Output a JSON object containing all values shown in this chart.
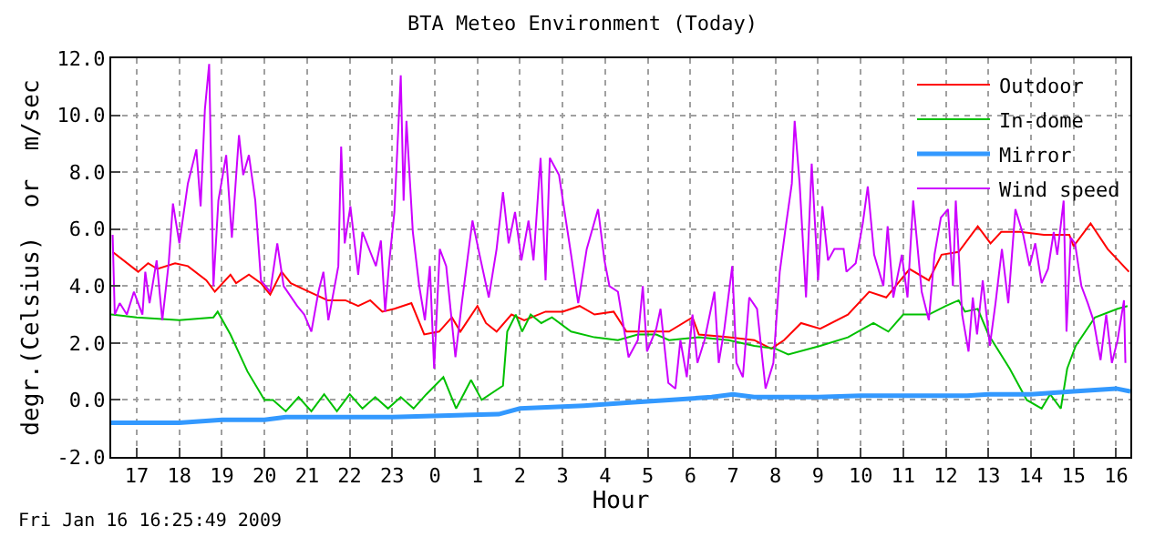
{
  "chart_data": {
    "type": "line",
    "title": "BTA Meteo Environment (Today)",
    "xlabel": "Hour",
    "ylabel": "degr.(Celsius)  or  m/sec",
    "annotations": [
      "Fri Jan 16 16:25:49 2009"
    ],
    "xlim": [
      "2009-01-15T16:24",
      "2009-01-16T16:20"
    ],
    "xticks": [
      {
        "value": "2009-01-15T17:00",
        "label": "17"
      },
      {
        "value": "2009-01-15T18:00",
        "label": "18"
      },
      {
        "value": "2009-01-15T19:00",
        "label": "19"
      },
      {
        "value": "2009-01-15T20:00",
        "label": "20"
      },
      {
        "value": "2009-01-15T21:00",
        "label": "21"
      },
      {
        "value": "2009-01-15T22:00",
        "label": "22"
      },
      {
        "value": "2009-01-15T23:00",
        "label": "23"
      },
      {
        "value": "2009-01-16T00:00",
        "label": "0"
      },
      {
        "value": "2009-01-16T01:00",
        "label": "1"
      },
      {
        "value": "2009-01-16T02:00",
        "label": "2"
      },
      {
        "value": "2009-01-16T03:00",
        "label": "3"
      },
      {
        "value": "2009-01-16T04:00",
        "label": "4"
      },
      {
        "value": "2009-01-16T05:00",
        "label": "5"
      },
      {
        "value": "2009-01-16T06:00",
        "label": "6"
      },
      {
        "value": "2009-01-16T07:00",
        "label": "7"
      },
      {
        "value": "2009-01-16T08:00",
        "label": "8"
      },
      {
        "value": "2009-01-16T09:00",
        "label": "9"
      },
      {
        "value": "2009-01-16T10:00",
        "label": "10"
      },
      {
        "value": "2009-01-16T11:00",
        "label": "11"
      },
      {
        "value": "2009-01-16T12:00",
        "label": "12"
      },
      {
        "value": "2009-01-16T13:00",
        "label": "13"
      },
      {
        "value": "2009-01-16T14:00",
        "label": "14"
      },
      {
        "value": "2009-01-16T15:00",
        "label": "15"
      },
      {
        "value": "2009-01-16T16:00",
        "label": "16"
      }
    ],
    "ylim": [
      -2,
      12
    ],
    "yticks": [
      {
        "value": -2,
        "label": "-2.0"
      },
      {
        "value": 0,
        "label": "0.0"
      },
      {
        "value": 2,
        "label": "2.0"
      },
      {
        "value": 4,
        "label": "4.0"
      },
      {
        "value": 6,
        "label": "6.0"
      },
      {
        "value": 8,
        "label": "8.0"
      },
      {
        "value": 10,
        "label": "10.0"
      },
      {
        "value": 12,
        "label": "12.0"
      }
    ],
    "grid": true,
    "legend": "top right",
    "marker": "none",
    "line_style": "solid",
    "series": [
      {
        "name": "Outdoor",
        "color": "#ff0000",
        "x": [
          "2009-01-15T16:26",
          "2009-01-15T17:02",
          "2009-01-15T17:16",
          "2009-01-15T17:29",
          "2009-01-15T17:54",
          "2009-01-15T18:12",
          "2009-01-15T18:38",
          "2009-01-15T18:50",
          "2009-01-15T19:12",
          "2009-01-15T19:20",
          "2009-01-15T19:38",
          "2009-01-15T19:55",
          "2009-01-15T20:08",
          "2009-01-15T20:24",
          "2009-01-15T20:37",
          "2009-01-15T21:03",
          "2009-01-15T21:29",
          "2009-01-15T21:54",
          "2009-01-15T22:12",
          "2009-01-15T22:29",
          "2009-01-15T22:46",
          "2009-01-15T23:03",
          "2009-01-15T23:27",
          "2009-01-15T23:45",
          "2009-01-16T00:06",
          "2009-01-16T00:24",
          "2009-01-16T00:36",
          "2009-01-16T01:00",
          "2009-01-16T01:12",
          "2009-01-16T01:27",
          "2009-01-16T01:48",
          "2009-01-16T02:06",
          "2009-01-16T02:36",
          "2009-01-16T03:00",
          "2009-01-16T03:24",
          "2009-01-16T03:45",
          "2009-01-16T04:12",
          "2009-01-16T04:30",
          "2009-01-16T04:54",
          "2009-01-16T05:30",
          "2009-01-16T06:03",
          "2009-01-16T06:12",
          "2009-01-16T06:54",
          "2009-01-16T07:30",
          "2009-01-16T07:54",
          "2009-01-16T08:12",
          "2009-01-16T08:36",
          "2009-01-16T09:03",
          "2009-01-16T09:42",
          "2009-01-16T10:12",
          "2009-01-16T10:36",
          "2009-01-16T11:09",
          "2009-01-16T11:36",
          "2009-01-16T11:54",
          "2009-01-16T12:18",
          "2009-01-16T12:45",
          "2009-01-16T13:03",
          "2009-01-16T13:18",
          "2009-01-16T13:45",
          "2009-01-16T14:18",
          "2009-01-16T14:54",
          "2009-01-16T15:00",
          "2009-01-16T15:24",
          "2009-01-16T15:48",
          "2009-01-16T16:18"
        ],
        "values": [
          5.2,
          4.5,
          4.8,
          4.6,
          4.8,
          4.7,
          4.2,
          3.8,
          4.4,
          4.1,
          4.4,
          4.1,
          3.7,
          4.5,
          4.1,
          3.8,
          3.5,
          3.5,
          3.3,
          3.5,
          3.1,
          3.2,
          3.4,
          2.3,
          2.4,
          2.9,
          2.4,
          3.3,
          2.7,
          2.4,
          3.0,
          2.8,
          3.1,
          3.1,
          3.3,
          3.0,
          3.1,
          2.4,
          2.4,
          2.4,
          2.9,
          2.3,
          2.2,
          2.1,
          1.8,
          2.1,
          2.7,
          2.5,
          3.0,
          3.8,
          3.6,
          4.6,
          4.2,
          5.1,
          5.2,
          6.1,
          5.5,
          5.9,
          5.9,
          5.8,
          5.8,
          5.4,
          6.2,
          5.3,
          4.5
        ]
      },
      {
        "name": "In-dome",
        "color": "#00c000",
        "x": [
          "2009-01-15T16:24",
          "2009-01-15T17:00",
          "2009-01-15T18:00",
          "2009-01-15T18:48",
          "2009-01-15T18:54",
          "2009-01-15T19:12",
          "2009-01-15T19:36",
          "2009-01-15T20:00",
          "2009-01-15T20:12",
          "2009-01-15T20:30",
          "2009-01-15T20:48",
          "2009-01-15T21:06",
          "2009-01-15T21:24",
          "2009-01-15T21:42",
          "2009-01-15T22:00",
          "2009-01-15T22:18",
          "2009-01-15T22:36",
          "2009-01-15T22:54",
          "2009-01-15T23:12",
          "2009-01-15T23:30",
          "2009-01-15T23:48",
          "2009-01-16T00:12",
          "2009-01-16T00:30",
          "2009-01-16T00:51",
          "2009-01-16T01:06",
          "2009-01-16T01:36",
          "2009-01-16T01:42",
          "2009-01-16T01:54",
          "2009-01-16T02:03",
          "2009-01-16T02:15",
          "2009-01-16T02:30",
          "2009-01-16T02:45",
          "2009-01-16T03:12",
          "2009-01-16T03:45",
          "2009-01-16T04:18",
          "2009-01-16T04:46",
          "2009-01-16T05:12",
          "2009-01-16T05:30",
          "2009-01-16T06:12",
          "2009-01-16T06:54",
          "2009-01-16T07:30",
          "2009-01-16T08:00",
          "2009-01-16T08:18",
          "2009-01-16T09:03",
          "2009-01-16T09:42",
          "2009-01-16T10:18",
          "2009-01-16T10:39",
          "2009-01-16T11:00",
          "2009-01-16T11:36",
          "2009-01-16T12:00",
          "2009-01-16T12:18",
          "2009-01-16T12:27",
          "2009-01-16T12:45",
          "2009-01-16T13:00",
          "2009-01-16T13:30",
          "2009-01-16T13:54",
          "2009-01-16T14:15",
          "2009-01-16T14:27",
          "2009-01-16T14:42",
          "2009-01-16T14:51",
          "2009-01-16T15:03",
          "2009-01-16T15:30",
          "2009-01-16T16:02",
          "2009-01-16T16:16"
        ],
        "values": [
          3.0,
          2.9,
          2.8,
          2.9,
          3.1,
          2.3,
          1.0,
          0.0,
          0.0,
          -0.4,
          0.1,
          -0.4,
          0.2,
          -0.4,
          0.2,
          -0.3,
          0.1,
          -0.3,
          0.1,
          -0.3,
          0.2,
          0.8,
          -0.3,
          0.7,
          0.0,
          0.5,
          2.4,
          3.0,
          2.4,
          3.0,
          2.7,
          2.9,
          2.4,
          2.2,
          2.1,
          2.3,
          2.3,
          2.1,
          2.2,
          2.1,
          1.9,
          1.8,
          1.6,
          1.9,
          2.2,
          2.7,
          2.4,
          3.0,
          3.0,
          3.3,
          3.5,
          3.1,
          3.2,
          2.3,
          1.1,
          0.0,
          -0.3,
          0.2,
          -0.3,
          1.1,
          1.9,
          2.9,
          3.2,
          3.3
        ]
      },
      {
        "name": "Mirror",
        "color": "#3399ff",
        "x": [
          "2009-01-15T16:24",
          "2009-01-15T17:00",
          "2009-01-15T18:00",
          "2009-01-15T19:00",
          "2009-01-15T20:00",
          "2009-01-15T20:30",
          "2009-01-15T23:00",
          "2009-01-16T01:30",
          "2009-01-16T02:00",
          "2009-01-16T03:30",
          "2009-01-16T04:30",
          "2009-01-16T05:30",
          "2009-01-16T06:30",
          "2009-01-16T07:00",
          "2009-01-16T07:30",
          "2009-01-16T09:00",
          "2009-01-16T10:00",
          "2009-01-16T12:30",
          "2009-01-16T13:00",
          "2009-01-16T14:00",
          "2009-01-16T15:00",
          "2009-01-16T16:00",
          "2009-01-16T16:20"
        ],
        "values": [
          -0.8,
          -0.8,
          -0.8,
          -0.7,
          -0.7,
          -0.6,
          -0.6,
          -0.5,
          -0.3,
          -0.2,
          -0.1,
          0.0,
          0.1,
          0.2,
          0.1,
          0.1,
          0.15,
          0.15,
          0.2,
          0.2,
          0.3,
          0.4,
          0.3
        ]
      },
      {
        "name": "Wind speed",
        "color": "#cc00ff",
        "x": [
          "2009-01-15T16:26",
          "2009-01-15T16:29",
          "2009-01-15T16:36",
          "2009-01-15T16:46",
          "2009-01-15T16:56",
          "2009-01-15T17:08",
          "2009-01-15T17:12",
          "2009-01-15T17:18",
          "2009-01-15T17:28",
          "2009-01-15T17:36",
          "2009-01-15T17:45",
          "2009-01-15T17:51",
          "2009-01-15T18:00",
          "2009-01-15T18:12",
          "2009-01-15T18:24",
          "2009-01-15T18:30",
          "2009-01-15T18:36",
          "2009-01-15T18:42",
          "2009-01-15T18:48",
          "2009-01-15T18:55",
          "2009-01-15T19:06",
          "2009-01-15T19:14",
          "2009-01-15T19:24",
          "2009-01-15T19:30",
          "2009-01-15T19:38",
          "2009-01-15T19:47",
          "2009-01-15T19:55",
          "2009-01-15T20:08",
          "2009-01-15T20:18",
          "2009-01-15T20:27",
          "2009-01-15T20:46",
          "2009-01-15T20:56",
          "2009-01-15T21:06",
          "2009-01-15T21:16",
          "2009-01-15T21:23",
          "2009-01-15T21:30",
          "2009-01-15T21:44",
          "2009-01-15T21:48",
          "2009-01-15T21:53",
          "2009-01-15T22:01",
          "2009-01-15T22:12",
          "2009-01-15T22:18",
          "2009-01-15T22:29",
          "2009-01-15T22:37",
          "2009-01-15T22:44",
          "2009-01-15T22:50",
          "2009-01-15T22:56",
          "2009-01-15T23:03",
          "2009-01-15T23:12",
          "2009-01-15T23:16",
          "2009-01-15T23:20",
          "2009-01-15T23:29",
          "2009-01-15T23:38",
          "2009-01-15T23:46",
          "2009-01-15T23:53",
          "2009-01-15T23:59",
          "2009-01-16T00:07",
          "2009-01-16T00:16",
          "2009-01-16T00:29",
          "2009-01-16T00:38",
          "2009-01-16T00:53",
          "2009-01-16T01:03",
          "2009-01-16T01:16",
          "2009-01-16T01:27",
          "2009-01-16T01:36",
          "2009-01-16T01:44",
          "2009-01-16T01:53",
          "2009-01-16T02:02",
          "2009-01-16T02:12",
          "2009-01-16T02:19",
          "2009-01-16T02:29",
          "2009-01-16T02:36",
          "2009-01-16T02:42",
          "2009-01-16T02:55",
          "2009-01-16T03:12",
          "2009-01-16T03:22",
          "2009-01-16T03:34",
          "2009-01-16T03:50",
          "2009-01-16T03:59",
          "2009-01-16T04:06",
          "2009-01-16T04:18",
          "2009-01-16T04:33",
          "2009-01-16T04:46",
          "2009-01-16T04:53",
          "2009-01-16T04:59",
          "2009-01-16T05:12",
          "2009-01-16T05:18",
          "2009-01-16T05:29",
          "2009-01-16T05:39",
          "2009-01-16T05:46",
          "2009-01-16T05:55",
          "2009-01-16T06:03",
          "2009-01-16T06:10",
          "2009-01-16T06:20",
          "2009-01-16T06:34",
          "2009-01-16T06:40",
          "2009-01-16T06:48",
          "2009-01-16T06:59",
          "2009-01-16T07:05",
          "2009-01-16T07:14",
          "2009-01-16T07:23",
          "2009-01-16T07:34",
          "2009-01-16T07:46",
          "2009-01-16T07:57",
          "2009-01-16T08:06",
          "2009-01-16T08:14",
          "2009-01-16T08:23",
          "2009-01-16T08:27",
          "2009-01-16T08:34",
          "2009-01-16T08:43",
          "2009-01-16T08:51",
          "2009-01-16T09:00",
          "2009-01-16T09:06",
          "2009-01-16T09:14",
          "2009-01-16T09:23",
          "2009-01-16T09:36",
          "2009-01-16T09:40",
          "2009-01-16T09:53",
          "2009-01-16T10:03",
          "2009-01-16T10:10",
          "2009-01-16T10:19",
          "2009-01-16T10:32",
          "2009-01-16T10:38",
          "2009-01-16T10:46",
          "2009-01-16T10:58",
          "2009-01-16T11:06",
          "2009-01-16T11:14",
          "2009-01-16T11:26",
          "2009-01-16T11:36",
          "2009-01-16T11:44",
          "2009-01-16T11:53",
          "2009-01-16T12:03",
          "2009-01-16T12:10",
          "2009-01-16T12:14",
          "2009-01-16T12:23",
          "2009-01-16T12:32",
          "2009-01-16T12:38",
          "2009-01-16T12:44",
          "2009-01-16T12:52",
          "2009-01-16T13:02",
          "2009-01-16T13:10",
          "2009-01-16T13:19",
          "2009-01-16T13:28",
          "2009-01-16T13:38",
          "2009-01-16T13:49",
          "2009-01-16T13:58",
          "2009-01-16T14:06",
          "2009-01-16T14:15",
          "2009-01-16T14:24",
          "2009-01-16T14:32",
          "2009-01-16T14:37",
          "2009-01-16T14:46",
          "2009-01-16T14:50",
          "2009-01-16T14:56",
          "2009-01-16T15:02",
          "2009-01-16T15:11",
          "2009-01-16T15:20",
          "2009-01-16T15:28",
          "2009-01-16T15:38",
          "2009-01-16T15:46",
          "2009-01-16T15:54",
          "2009-01-16T16:02",
          "2009-01-16T16:11",
          "2009-01-16T16:13"
        ],
        "values": [
          5.8,
          3.0,
          3.4,
          3.0,
          3.8,
          3.0,
          4.5,
          3.4,
          4.9,
          2.8,
          4.8,
          6.9,
          5.5,
          7.6,
          8.8,
          6.8,
          10.2,
          11.8,
          4.0,
          7.0,
          8.6,
          5.7,
          9.3,
          7.9,
          8.6,
          7.0,
          4.2,
          3.8,
          5.5,
          4.0,
          3.3,
          3.0,
          2.4,
          3.8,
          4.5,
          2.8,
          4.7,
          8.9,
          5.5,
          6.8,
          4.4,
          5.9,
          5.2,
          4.7,
          5.6,
          3.1,
          4.9,
          6.6,
          11.4,
          7.0,
          9.8,
          5.9,
          4.0,
          2.8,
          4.7,
          1.1,
          5.3,
          4.7,
          1.5,
          3.4,
          6.3,
          5.1,
          3.6,
          5.3,
          7.3,
          5.5,
          6.6,
          4.9,
          6.3,
          4.9,
          8.5,
          4.2,
          8.5,
          7.9,
          5.1,
          3.4,
          5.3,
          6.7,
          4.9,
          4.0,
          3.8,
          1.5,
          2.1,
          4.0,
          1.7,
          2.5,
          3.2,
          0.6,
          0.4,
          2.1,
          0.8,
          3.0,
          1.3,
          2.1,
          3.8,
          1.3,
          2.5,
          4.7,
          1.3,
          0.8,
          3.6,
          3.2,
          0.4,
          1.3,
          4.5,
          6.0,
          7.6,
          9.8,
          7.6,
          3.6,
          8.3,
          4.2,
          6.8,
          4.9,
          5.3,
          5.3,
          4.5,
          4.8,
          6.2,
          7.5,
          5.1,
          4.0,
          6.1,
          3.6,
          5.1,
          3.6,
          7.0,
          3.8,
          2.8,
          5.1,
          6.4,
          6.7,
          4.0,
          7.0,
          3.0,
          1.7,
          3.6,
          2.3,
          4.2,
          1.9,
          3.4,
          5.3,
          3.4,
          6.7,
          5.8,
          4.7,
          5.5,
          4.1,
          4.6,
          5.9,
          5.1,
          7.0,
          2.4,
          5.7,
          5.5,
          4.0,
          3.4,
          2.8,
          1.4,
          3.0,
          1.3,
          2.1,
          3.5,
          1.3
        ]
      }
    ]
  }
}
